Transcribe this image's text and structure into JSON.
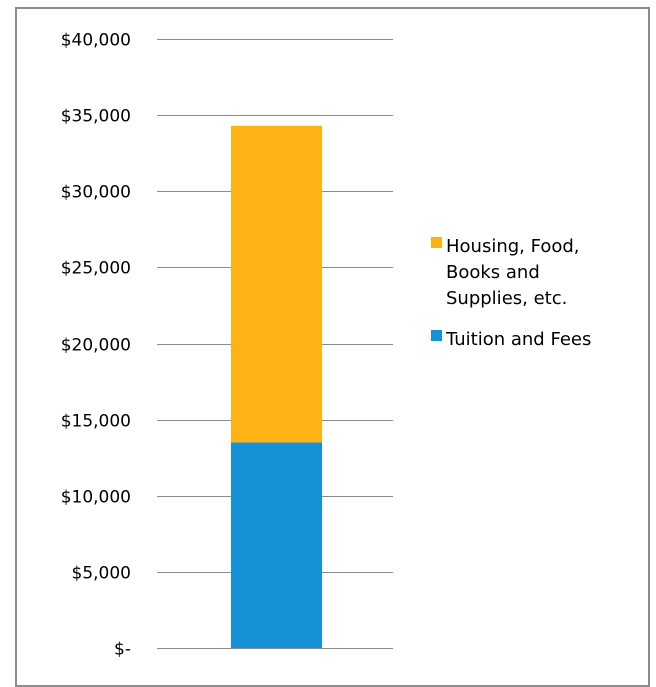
{
  "chart_data": {
    "type": "bar",
    "stacked": true,
    "categories": [
      ""
    ],
    "series": [
      {
        "name": "Tuition and Fees",
        "values": [
          13500
        ],
        "color": "#1591d8"
      },
      {
        "name": "Housing, Food, Books and Supplies, etc.",
        "values": [
          20800
        ],
        "color": "#ffb213"
      }
    ],
    "title": "",
    "xlabel": "",
    "ylabel": "",
    "ylim": [
      0,
      40000
    ],
    "y_ticks": [
      0,
      5000,
      10000,
      15000,
      20000,
      25000,
      30000,
      35000,
      40000
    ],
    "y_tick_labels": [
      "$-",
      "$5,000",
      "$10,000",
      "$15,000",
      "$20,000",
      "$25,000",
      "$30,000",
      "$35,000",
      "$40,000"
    ],
    "grid": true,
    "legend": {
      "position": "right",
      "entries": [
        {
          "lines": [
            "Housing, Food,",
            "Books and",
            "Supplies, etc."
          ],
          "color": "#ffb213"
        },
        {
          "lines": [
            "Tuition and Fees"
          ],
          "color": "#1591d8"
        }
      ]
    },
    "colors": {
      "gridline": "#8c8c8c",
      "border": "#8c8c8c"
    }
  }
}
